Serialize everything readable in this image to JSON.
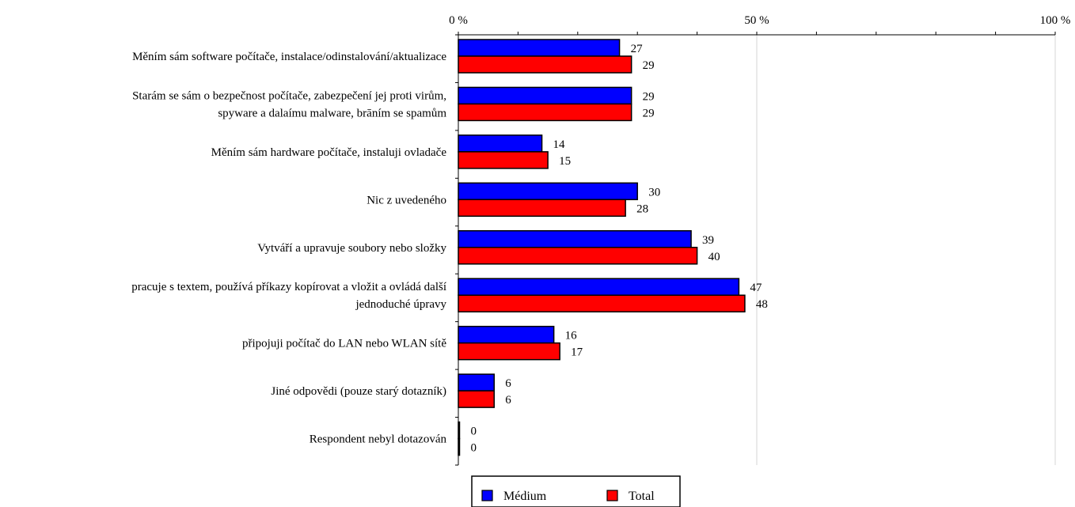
{
  "chart_data": {
    "type": "bar",
    "orientation": "horizontal",
    "title": "",
    "xlabel": "",
    "ylabel": "",
    "xlim": [
      0,
      100
    ],
    "x_ticks": [
      {
        "value": 0,
        "label": "0 %"
      },
      {
        "value": 50,
        "label": "50 %"
      },
      {
        "value": 100,
        "label": "100 %"
      }
    ],
    "grid": true,
    "legend_position": "bottom",
    "categories": [
      [
        "Měním sám software počítače, instalace/odinstalování/aktualizace"
      ],
      [
        "Starám se sám o bezpečnost počítače, zabezpečení jej proti virům,",
        "spyware a dalaímu malware, brāním se spamům"
      ],
      [
        "Měním sám hardware počítače, instaluji ovladače"
      ],
      [
        "Nic z uvedeného"
      ],
      [
        "Vytváří a upravuje soubory nebo složky"
      ],
      [
        "pracuje s textem, používá příkazy kopírovat a vložit a ovládá další",
        "jednoduché úpravy"
      ],
      [
        "připojuji počítač do LAN nebo WLAN sítě"
      ],
      [
        "Jiné odpovědi (pouze starý dotazník)"
      ],
      [
        "Respondent nebyl dotazován"
      ]
    ],
    "series": [
      {
        "name": "Médium",
        "color": "#0000ff",
        "values": [
          27,
          29,
          14,
          30,
          39,
          47,
          16,
          6,
          0
        ]
      },
      {
        "name": "Total",
        "color": "#ff0000",
        "values": [
          29,
          29,
          15,
          28,
          40,
          48,
          17,
          6,
          0
        ]
      }
    ]
  }
}
